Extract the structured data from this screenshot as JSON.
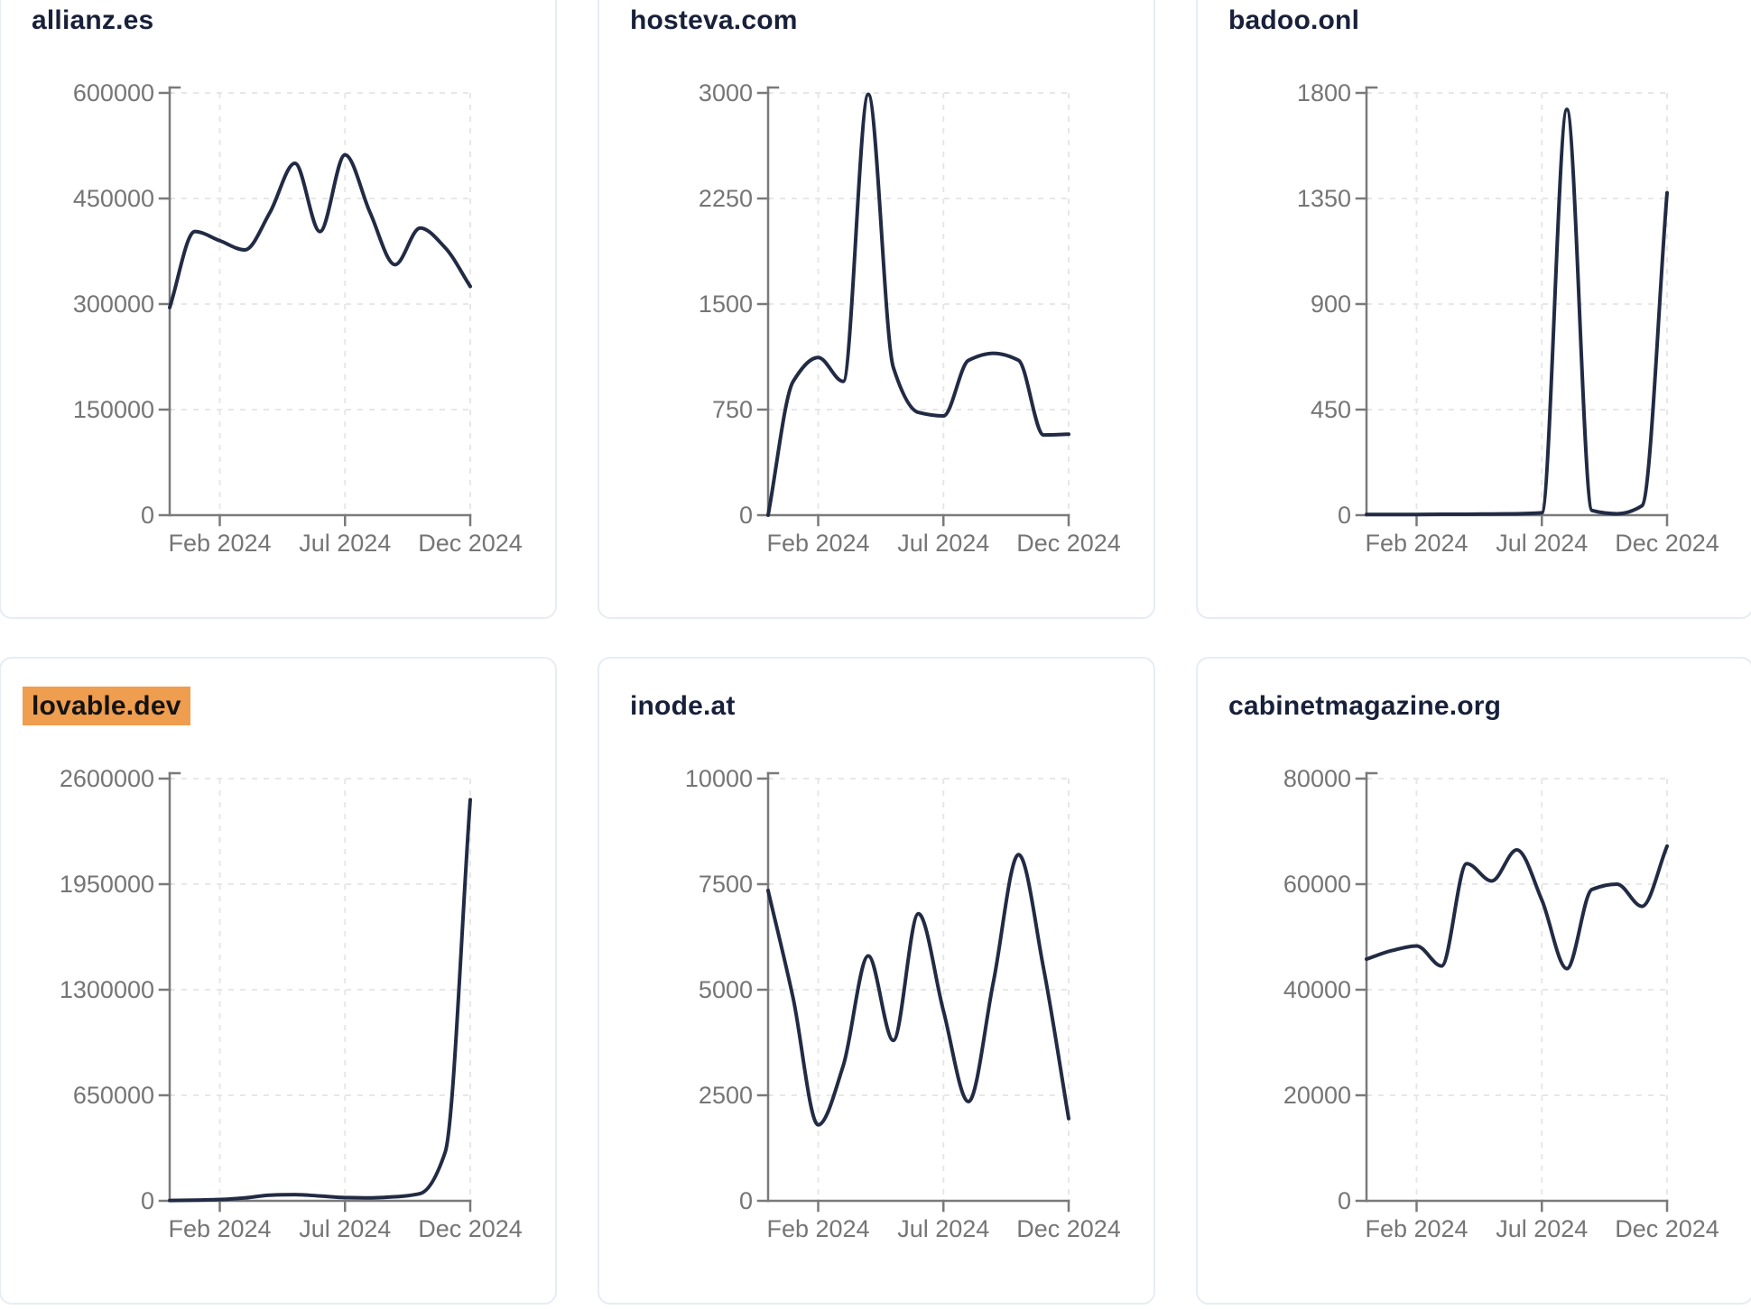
{
  "page": {
    "background": "#ffffff"
  },
  "style": {
    "line_color": "#222b44",
    "title_color": "#18203a",
    "tick_label_color": "#757575",
    "axis_color": "#7a7a7a",
    "gridline_color": "#e7e7e7",
    "card_border_color": "#e7ecf4",
    "card_background": "#ffffff",
    "highlight_background": "#ef9d4e",
    "highlight_text_color": "#131313"
  },
  "chart_data": {
    "type": "line",
    "grid": "dashed",
    "legend": "none",
    "x_months": [
      "Dec 2023",
      "Jan 2024",
      "Feb 2024",
      "Mar 2024",
      "Apr 2024",
      "May 2024",
      "Jun 2024",
      "Jul 2024",
      "Aug 2024",
      "Sep 2024",
      "Oct 2024",
      "Nov 2024",
      "Dec 2024"
    ],
    "x_tick_labels": [
      "Feb 2024",
      "Jul 2024",
      "Dec 2024"
    ],
    "x_tick_month_indices": [
      2,
      7,
      12
    ],
    "charts": [
      {
        "title": "allianz.es",
        "highlighted": false,
        "ylim": [
          0,
          600000
        ],
        "y_ticks": [
          0,
          150000,
          300000,
          450000,
          600000
        ],
        "values": [
          295000,
          403000,
          390000,
          377000,
          430000,
          500000,
          403000,
          512000,
          430000,
          356000,
          408000,
          380000,
          325000
        ]
      },
      {
        "title": "hosteva.com",
        "highlighted": false,
        "ylim": [
          0,
          3000
        ],
        "y_ticks": [
          0,
          750,
          1500,
          2250,
          3000
        ],
        "values": [
          0,
          950,
          1120,
          950,
          2990,
          1050,
          730,
          705,
          1100,
          1150,
          1100,
          570,
          575
        ]
      },
      {
        "title": "badoo.onl",
        "highlighted": false,
        "ylim": [
          0,
          1800
        ],
        "y_ticks": [
          0,
          450,
          900,
          1350,
          1800
        ],
        "values": [
          3,
          3,
          3,
          4,
          4,
          5,
          6,
          10,
          1730,
          20,
          6,
          40,
          1374
        ]
      },
      {
        "title": "lovable.dev",
        "highlighted": true,
        "ylim": [
          0,
          2600000
        ],
        "y_ticks": [
          0,
          650000,
          1300000,
          1950000,
          2600000
        ],
        "values": [
          2000,
          4000,
          8000,
          18000,
          35000,
          38000,
          30000,
          20000,
          18000,
          25000,
          45000,
          300000,
          2470000
        ]
      },
      {
        "title": "inode.at",
        "highlighted": false,
        "ylim": [
          0,
          10000
        ],
        "y_ticks": [
          0,
          2500,
          5000,
          7500,
          10000
        ],
        "values": [
          7350,
          4800,
          1800,
          3200,
          5800,
          3800,
          6800,
          4500,
          2350,
          5200,
          8200,
          5500,
          1950
        ]
      },
      {
        "title": "cabinetmagazine.org",
        "highlighted": false,
        "ylim": [
          0,
          80000
        ],
        "y_ticks": [
          0,
          20000,
          40000,
          60000,
          80000
        ],
        "values": [
          45800,
          47400,
          48300,
          44500,
          63900,
          60600,
          66500,
          57000,
          44000,
          59000,
          60000,
          55800,
          67200
        ]
      }
    ]
  }
}
